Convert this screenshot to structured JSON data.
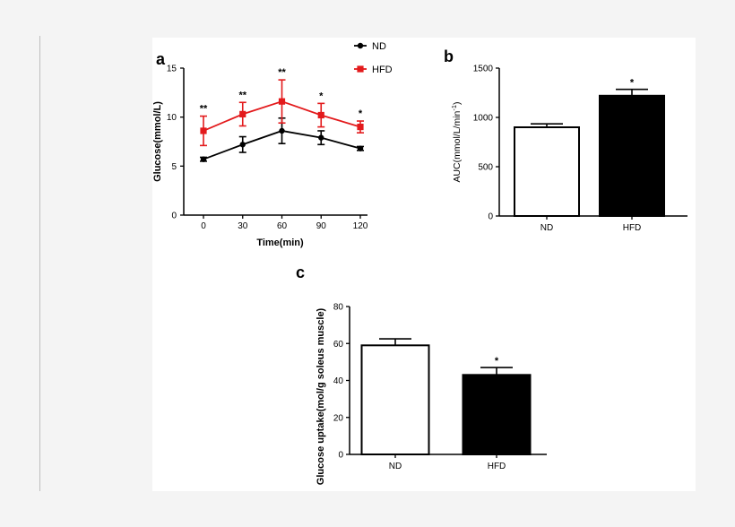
{
  "figure": {
    "panels": [
      {
        "letter": "a"
      },
      {
        "letter": "b"
      },
      {
        "letter": "c"
      }
    ]
  },
  "chart_data": [
    {
      "panel": "a",
      "type": "line",
      "xlabel": "Time(min)",
      "ylabel": "Glucose(mmol/L)",
      "x": [
        0,
        30,
        60,
        90,
        120
      ],
      "x_ticks": [
        "0",
        "30",
        "60",
        "90",
        "120"
      ],
      "ylim": [
        0,
        15
      ],
      "y_ticks": [
        "0",
        "5",
        "10",
        "15"
      ],
      "grid": false,
      "legend": {
        "placement": "top-right"
      },
      "series": [
        {
          "name": "ND",
          "color": "#000000",
          "marker": "circle",
          "values": [
            5.7,
            7.2,
            8.6,
            7.9,
            6.8
          ],
          "errors": [
            0.2,
            0.8,
            1.3,
            0.7,
            0.2
          ]
        },
        {
          "name": "HFD",
          "color": "#e31a1c",
          "marker": "square",
          "values": [
            8.6,
            10.3,
            11.6,
            10.2,
            9.0
          ],
          "errors": [
            1.5,
            1.2,
            2.2,
            1.2,
            0.6
          ]
        }
      ],
      "annotations": [
        "**",
        "**",
        "**",
        "*",
        "*"
      ]
    },
    {
      "panel": "b",
      "type": "bar",
      "categories": [
        "ND",
        "HFD"
      ],
      "values": [
        900,
        1220
      ],
      "errors": [
        35,
        65
      ],
      "fills": [
        "#ffffff",
        "#000000"
      ],
      "ylabel_main": "AUC(mmol/L/min",
      "ylabel_sup": "-1",
      "ylabel_end": ")",
      "ylim": [
        0,
        1500
      ],
      "y_ticks": [
        "0",
        "500",
        "1000",
        "1500"
      ],
      "grid": false,
      "annotations": [
        "",
        "*"
      ]
    },
    {
      "panel": "c",
      "type": "bar",
      "categories": [
        "ND",
        "HFD"
      ],
      "values": [
        59,
        43
      ],
      "errors": [
        3.5,
        4
      ],
      "fills": [
        "#ffffff",
        "#000000"
      ],
      "ylabel": "Glucose uptake(mol/g soleus muscle)",
      "ylim": [
        0,
        80
      ],
      "y_ticks": [
        "0",
        "20",
        "40",
        "60",
        "80"
      ],
      "grid": false,
      "annotations": [
        "",
        "*"
      ]
    }
  ]
}
